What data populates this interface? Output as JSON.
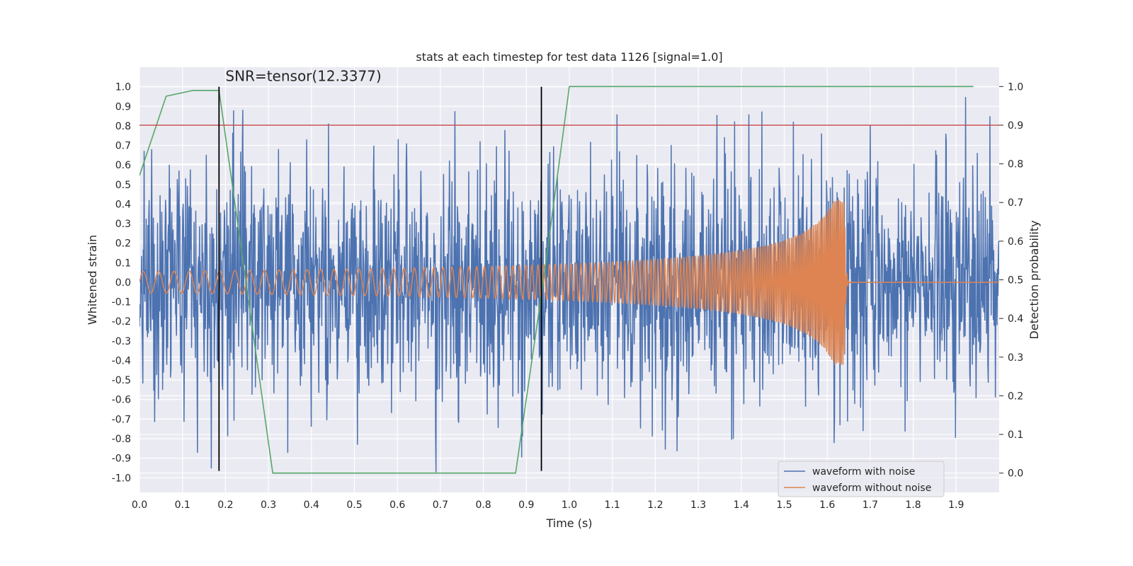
{
  "chart_data": {
    "type": "line",
    "title": "stats at each timestep for test data 1126 [signal=1.0]",
    "xlabel": "Time (s)",
    "ylabel": "Whitened strain",
    "ylabel_right": "Detection probability",
    "xlim": [
      0.0,
      2.0
    ],
    "ylim": [
      -1.075,
      1.1
    ],
    "ylim_right": [
      -0.05,
      1.05
    ],
    "xticks": [
      0.0,
      0.1,
      0.2,
      0.3,
      0.4,
      0.5,
      0.6,
      0.7,
      0.8,
      0.9,
      1.0,
      1.1,
      1.2,
      1.3,
      1.4,
      1.5,
      1.6,
      1.7,
      1.8,
      1.9
    ],
    "xtick_labels": [
      "0.0",
      "0.1",
      "0.2",
      "0.3",
      "0.4",
      "0.5",
      "0.6",
      "0.7",
      "0.8",
      "0.9",
      "1.0",
      "1.1",
      "1.2",
      "1.3",
      "1.4",
      "1.5",
      "1.6",
      "1.7",
      "1.8",
      "1.9"
    ],
    "yticks": [
      1.0,
      0.9,
      0.8,
      0.7,
      0.6,
      0.5,
      0.4,
      0.3,
      0.2,
      0.1,
      0.0,
      -0.1,
      -0.2,
      -0.3,
      -0.4,
      -0.5,
      -0.6,
      -0.7,
      -0.8,
      -0.9,
      -1.0
    ],
    "ytick_labels": [
      "1.0",
      "0.9",
      "0.8",
      "0.7",
      "0.6",
      "0.5",
      "0.4",
      "0.3",
      "0.2",
      "0.1",
      "0.0",
      "-0.1",
      "-0.2",
      "-0.3",
      "-0.4",
      "-0.5",
      "-0.6",
      "-0.7",
      "-0.8",
      "-0.9",
      "-1.0"
    ],
    "yticks_right": [
      1.0,
      0.9,
      0.8,
      0.7,
      0.6,
      0.5,
      0.4,
      0.3,
      0.2,
      0.1,
      0.0
    ],
    "ytick_labels_right": [
      "1.0",
      "0.9",
      "0.8",
      "0.7",
      "0.6",
      "0.5",
      "0.4",
      "0.3",
      "0.2",
      "0.1",
      "0.0"
    ],
    "annotation": "SNR=tensor(12.3377)",
    "annotation_pos": {
      "x": 0.2,
      "y": 1.03
    },
    "threshold": {
      "axis": "right",
      "value": 0.9,
      "color": "#c44e52"
    },
    "vlines": [
      {
        "x": 0.185,
        "ymin": -0.965,
        "ymax": 1.0,
        "color": "#000000"
      },
      {
        "x": 0.935,
        "ymin": -0.965,
        "ymax": 1.0,
        "color": "#000000"
      }
    ],
    "series": [
      {
        "name": "waveform with noise",
        "color": "#4c72b0",
        "axis": "left",
        "kind": "noise",
        "seed": 1126,
        "samples": 2048,
        "approx_amplitude": 0.3,
        "sample_values": [
          {
            "x": 0.155,
            "y": 0.65
          },
          {
            "x": 0.24,
            "y": 0.88
          },
          {
            "x": 0.44,
            "y": 0.81
          },
          {
            "x": 0.69,
            "y": -0.97
          },
          {
            "x": 0.135,
            "y": -0.87
          },
          {
            "x": 1.63,
            "y": 1.0
          },
          {
            "x": 1.7,
            "y": 0.8
          },
          {
            "x": 1.63,
            "y": -0.73
          }
        ]
      },
      {
        "name": "waveform without noise",
        "color": "#dd8452",
        "axis": "left",
        "kind": "chirp",
        "merger_time": 1.64,
        "amplitude_start": 0.055,
        "amplitude_peak": 0.42,
        "frequency_start_hz": 28,
        "frequency_end_hz": 220,
        "note": "sinusoid growing in amplitude and frequency, flat at 0 after merger"
      },
      {
        "name": "Detection probability",
        "color": "#55a868",
        "axis": "right",
        "kind": "line",
        "x": [
          0.0,
          0.062,
          0.125,
          0.185,
          0.31,
          0.375,
          0.44,
          0.5,
          0.56,
          0.625,
          0.69,
          0.75,
          0.81,
          0.875,
          0.94,
          1.0,
          1.06,
          1.125,
          1.19,
          1.25,
          1.31,
          1.375,
          1.44,
          1.5,
          1.56,
          1.625,
          1.69,
          1.75,
          1.81,
          1.875,
          1.94
        ],
        "values": [
          0.77,
          0.975,
          0.99,
          0.99,
          0.0,
          0.0,
          0.0,
          0.0,
          0.0,
          0.0,
          0.0,
          0.0,
          0.0,
          0.0,
          0.5,
          1.0,
          1.0,
          1.0,
          1.0,
          1.0,
          1.0,
          1.0,
          1.0,
          1.0,
          1.0,
          1.0,
          1.0,
          1.0,
          1.0,
          1.0,
          1.0
        ]
      }
    ],
    "legend": {
      "placement": "lower-right",
      "entries": [
        {
          "label": "waveform with noise",
          "color": "#4c72b0"
        },
        {
          "label": "waveform without noise",
          "color": "#dd8452"
        }
      ]
    },
    "grid": true,
    "background": "#eaeaf2"
  }
}
